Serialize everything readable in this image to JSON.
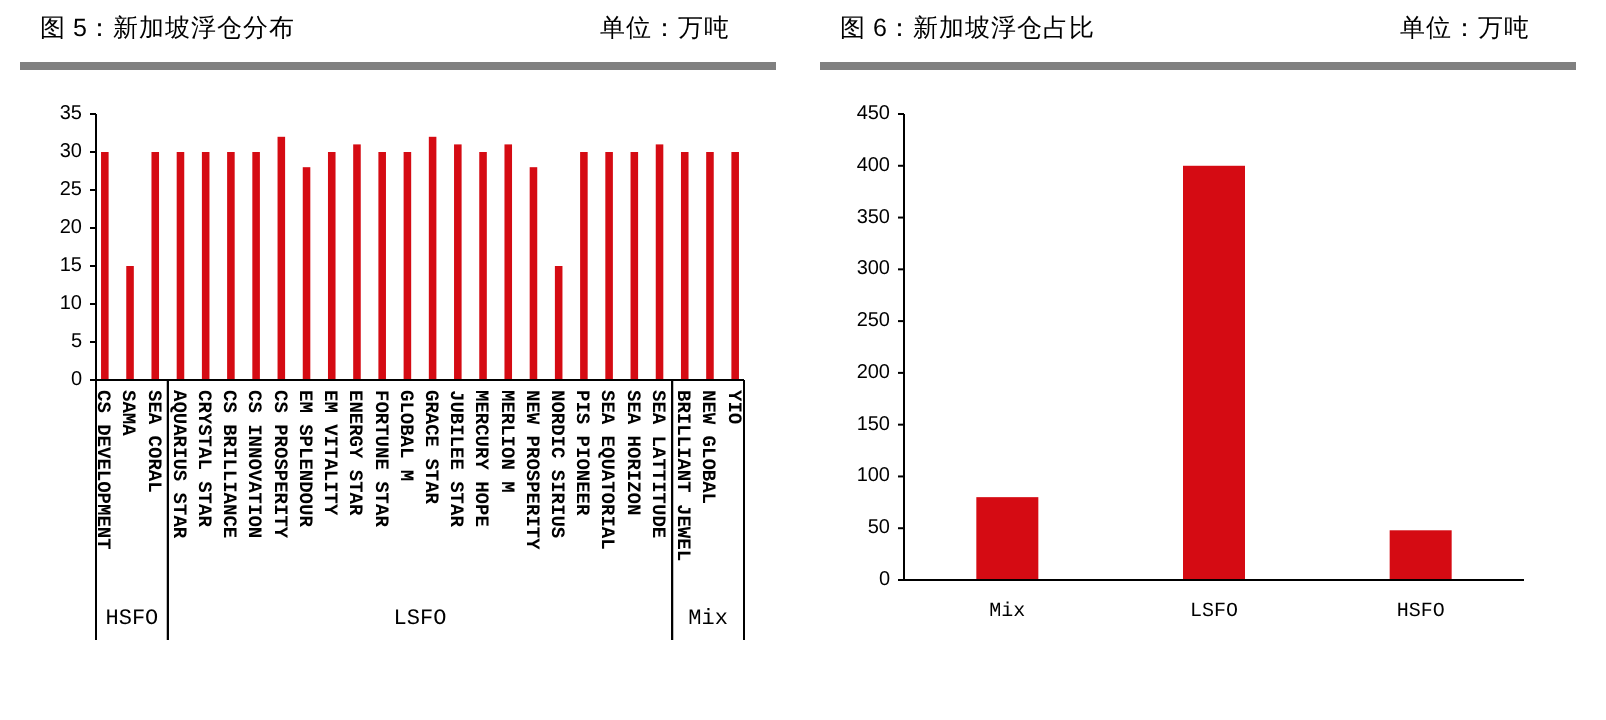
{
  "chart_data": [
    {
      "type": "bar",
      "title": "图 5：新加坡浮仓分布",
      "subtitle": "单位：万吨",
      "categories": [
        "CS DEVELOPMENT",
        "SAMA",
        "SEA CORAL",
        "AQUARIUS STAR",
        "CRYSTAL STAR",
        "CS BRILLIANCE",
        "CS INNOVATION",
        "CS PROSPERITY",
        "EM SPLENDOUR",
        "EM VITALITY",
        "ENERGY STAR",
        "FORTUNE STAR",
        "GLOBAL M",
        "GRACE STAR",
        "JUBILEE STAR",
        "MERCURY HOPE",
        "MERLION M",
        "NEW PROSPERITY",
        "NORDIC SIRIUS",
        "PIS PIONEER",
        "SEA EQUATORIAL",
        "SEA HORIZON",
        "SEA LATTITUDE",
        "BRILLIANT JEWEL",
        "NEW GLOBAL",
        "YIO"
      ],
      "values": [
        30,
        15,
        30,
        30,
        30,
        30,
        30,
        32,
        28,
        30,
        31,
        30,
        30,
        32,
        31,
        30,
        31,
        28,
        15,
        30,
        30,
        30,
        31,
        30,
        30,
        30
      ],
      "color": "#d50b13",
      "ylim": [
        0,
        35
      ],
      "yticks": [
        0,
        5,
        10,
        15,
        20,
        25,
        30,
        35
      ],
      "grid": false,
      "annotations": [
        "HSFO",
        "LSFO",
        "Mix"
      ]
    },
    {
      "type": "bar",
      "title": "图 6：新加坡浮仓占比",
      "subtitle": "单位：万吨",
      "categories": [
        "Mix",
        "LSFO",
        "HSFO"
      ],
      "values": [
        80,
        400,
        48
      ],
      "color": "#d50b13",
      "ylim": [
        0,
        450
      ],
      "yticks": [
        0,
        50,
        100,
        150,
        200,
        250,
        300,
        350,
        400,
        450
      ],
      "grid": false
    }
  ]
}
